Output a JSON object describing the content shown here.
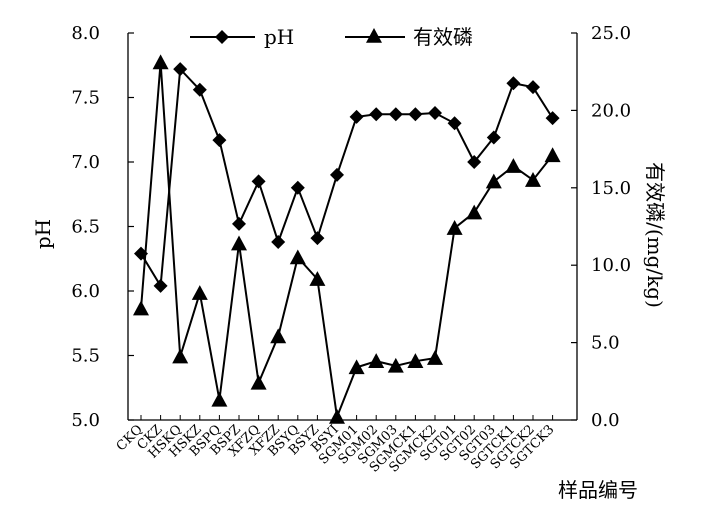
{
  "chart_data": {
    "type": "line",
    "categories": [
      "CKQ",
      "CKZ",
      "HSKQ",
      "HSKZ",
      "BSPQ",
      "BSPZ",
      "XFZQ",
      "XFZZ",
      "BSYQ",
      "BSYZ",
      "BSYI",
      "SGM01",
      "SGM02",
      "SGM03",
      "SGMCK1",
      "SGMCK2",
      "SGT01",
      "SGT02",
      "SGT03",
      "SGTCK1",
      "SGTCK2",
      "SGTCK3"
    ],
    "series": [
      {
        "name": "pH",
        "axis": "left",
        "marker": "diamond",
        "values": [
          6.29,
          6.04,
          7.72,
          7.56,
          7.17,
          6.52,
          6.85,
          6.38,
          6.8,
          6.41,
          6.9,
          7.35,
          7.37,
          7.37,
          7.37,
          7.38,
          7.3,
          7.0,
          7.19,
          7.61,
          7.58,
          7.34
        ]
      },
      {
        "name": "有效磷",
        "axis": "right",
        "marker": "triangle",
        "values": [
          7.2,
          23.1,
          4.1,
          8.2,
          1.3,
          11.4,
          2.4,
          5.4,
          10.5,
          9.1,
          0.2,
          3.4,
          3.8,
          3.5,
          3.8,
          4.0,
          12.4,
          13.4,
          15.4,
          16.4,
          15.5,
          17.1
        ]
      }
    ],
    "y_left": {
      "label": "pH",
      "ylim": [
        5.0,
        8.0
      ],
      "ticks": [
        "5.0",
        "5.5",
        "6.0",
        "6.5",
        "7.0",
        "7.5",
        "8.0"
      ]
    },
    "y_right": {
      "label": "有效磷/(mg/kg)",
      "ylim": [
        0,
        25
      ],
      "ticks": [
        "0.0",
        "5.0",
        "10.0",
        "15.0",
        "20.0",
        "25.0"
      ]
    },
    "xlabel": "样品编号",
    "legend": {
      "placement": "top",
      "entries": [
        "pH",
        "有效磷"
      ]
    },
    "grid": false
  }
}
